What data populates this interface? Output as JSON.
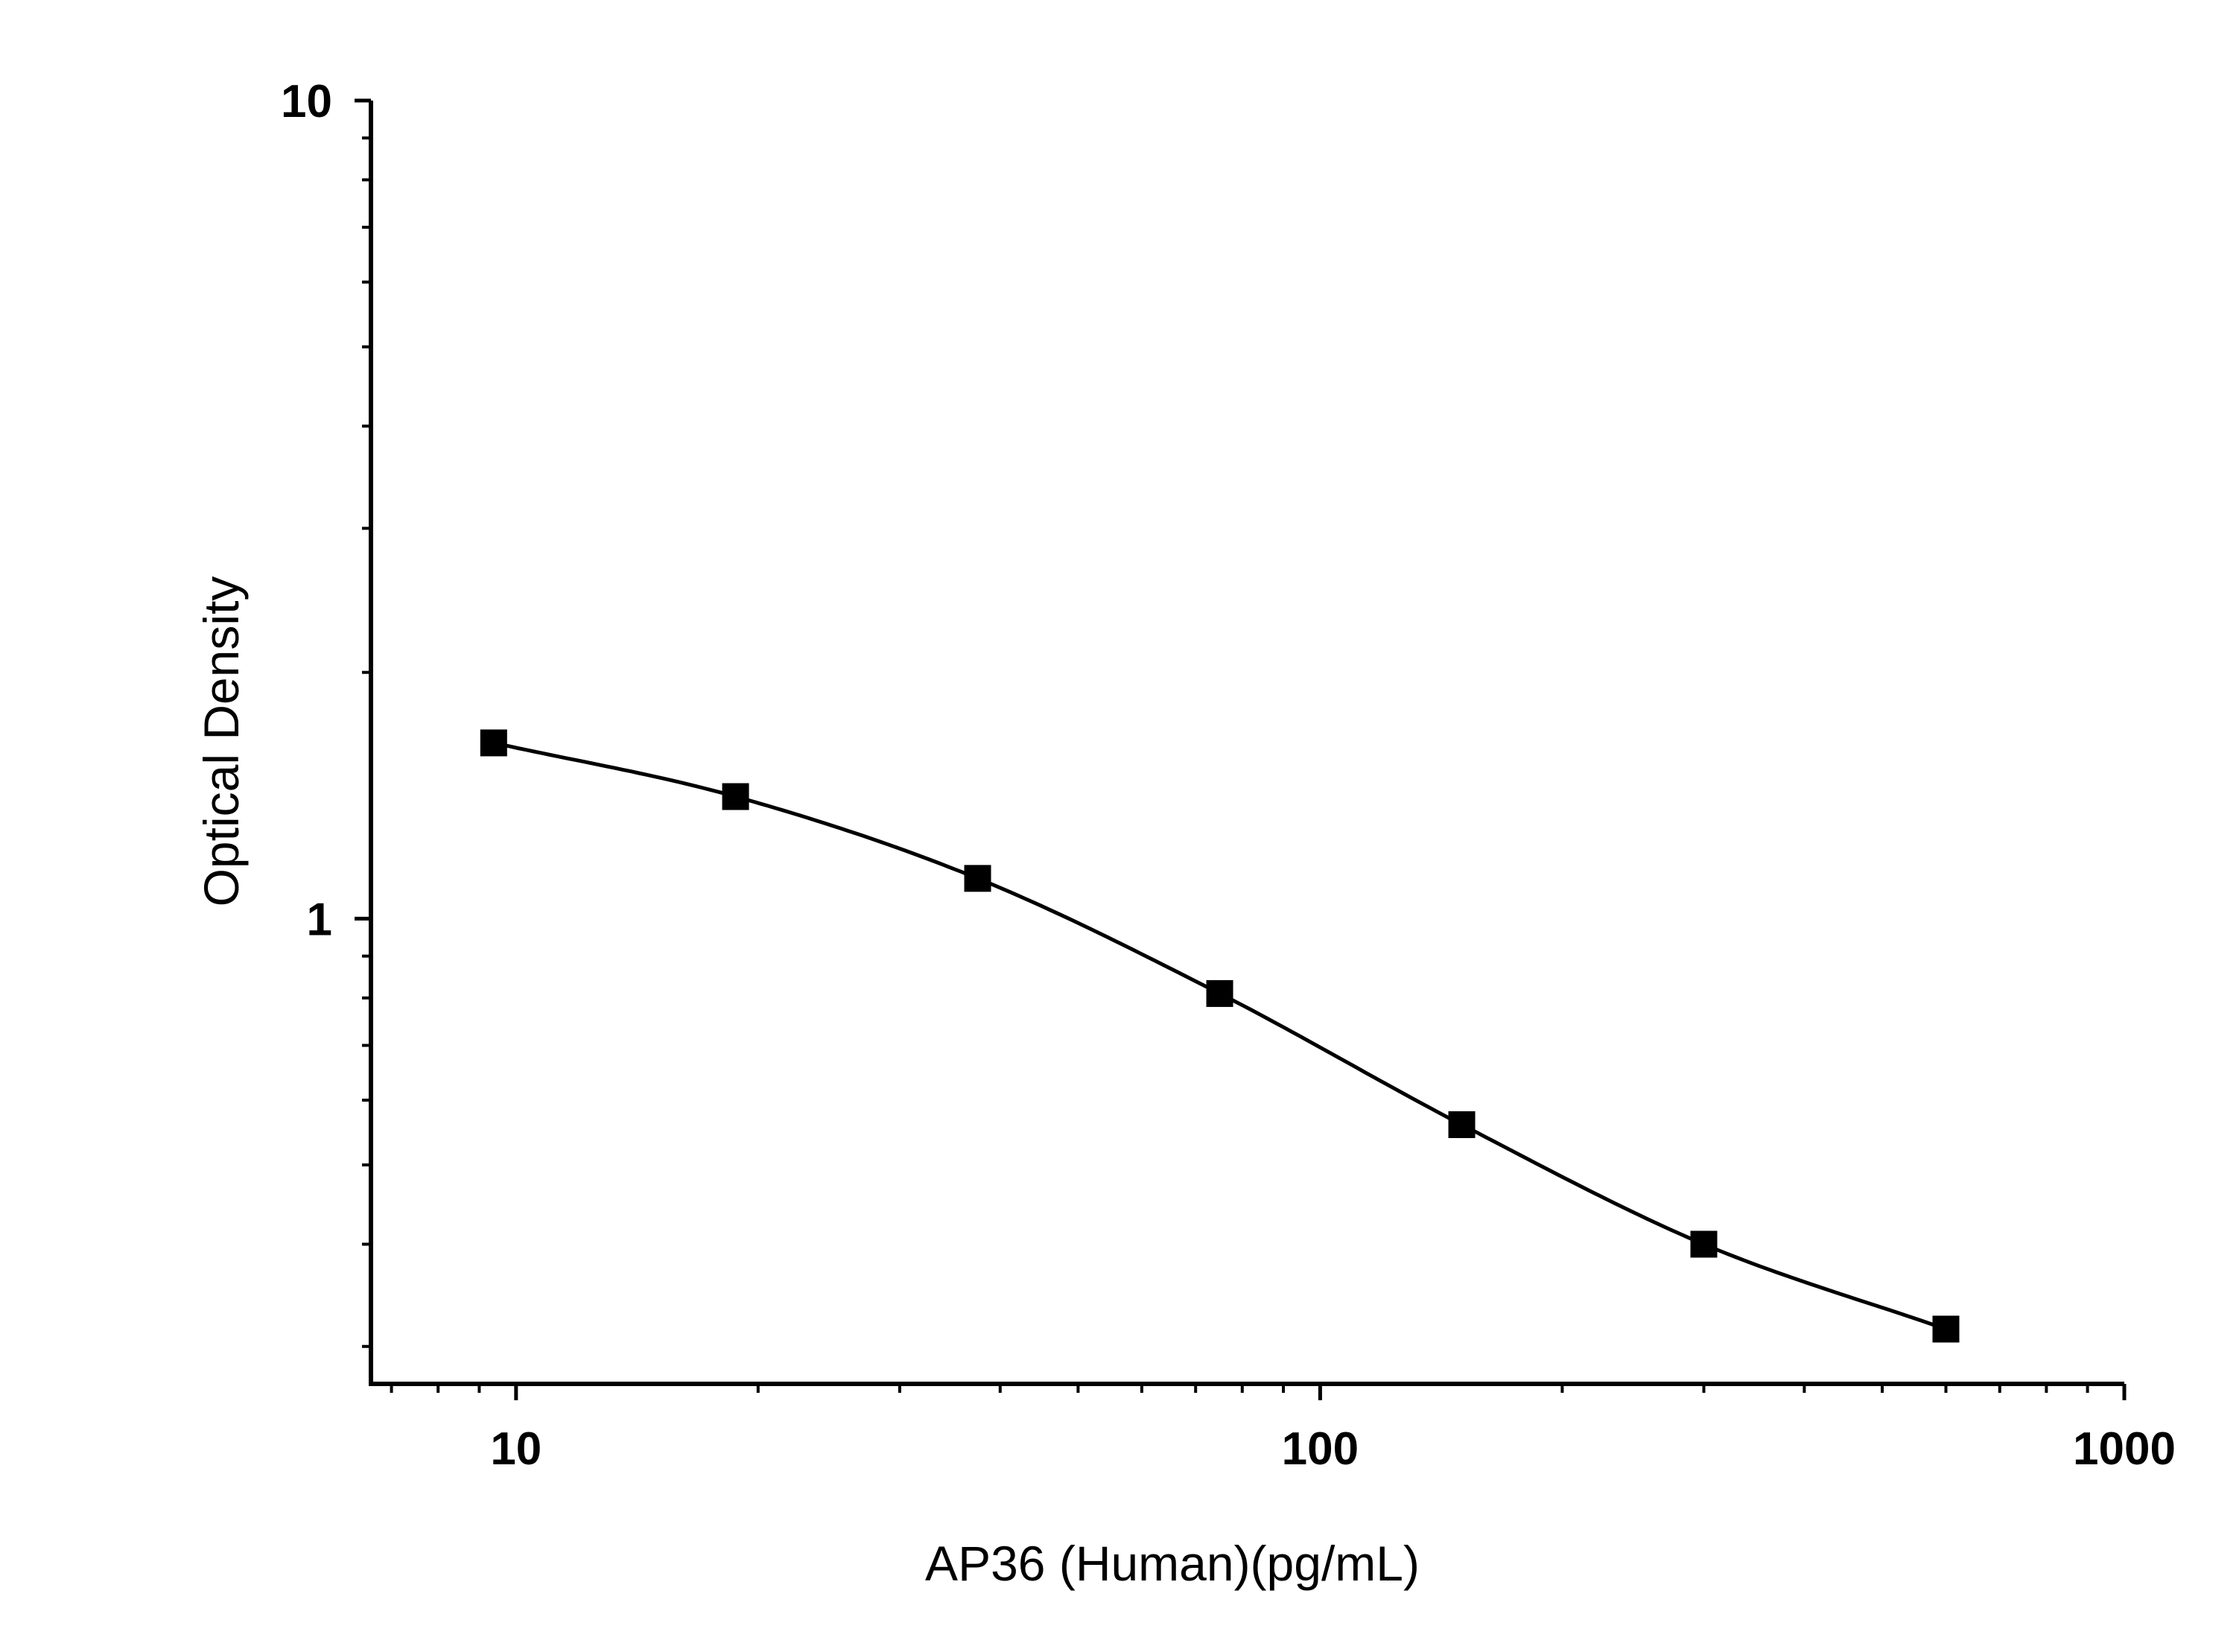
{
  "chart_data": {
    "type": "scatter",
    "title": "",
    "xlabel": "AP36 (Human)(pg/mL)",
    "ylabel": "Optical Density",
    "x_scale": "log",
    "y_scale": "log",
    "xlim": [
      6.6,
      1000
    ],
    "ylim": [
      0.27,
      10
    ],
    "x_ticks": [
      {
        "value": 10,
        "label": "10"
      },
      {
        "value": 100,
        "label": "100"
      },
      {
        "value": 1000,
        "label": "1000"
      }
    ],
    "y_ticks": [
      {
        "value": 1,
        "label": "1"
      },
      {
        "value": 10,
        "label": "10"
      }
    ],
    "grid": false,
    "legend": "none",
    "marker": "square",
    "color": "#000000",
    "series": [
      {
        "x": [
          9.38,
          18.75,
          37.5,
          75,
          150,
          300,
          600
        ],
        "y": [
          1.64,
          1.41,
          1.12,
          0.81,
          0.56,
          0.4,
          0.315
        ],
        "fit_curve": true
      }
    ]
  }
}
